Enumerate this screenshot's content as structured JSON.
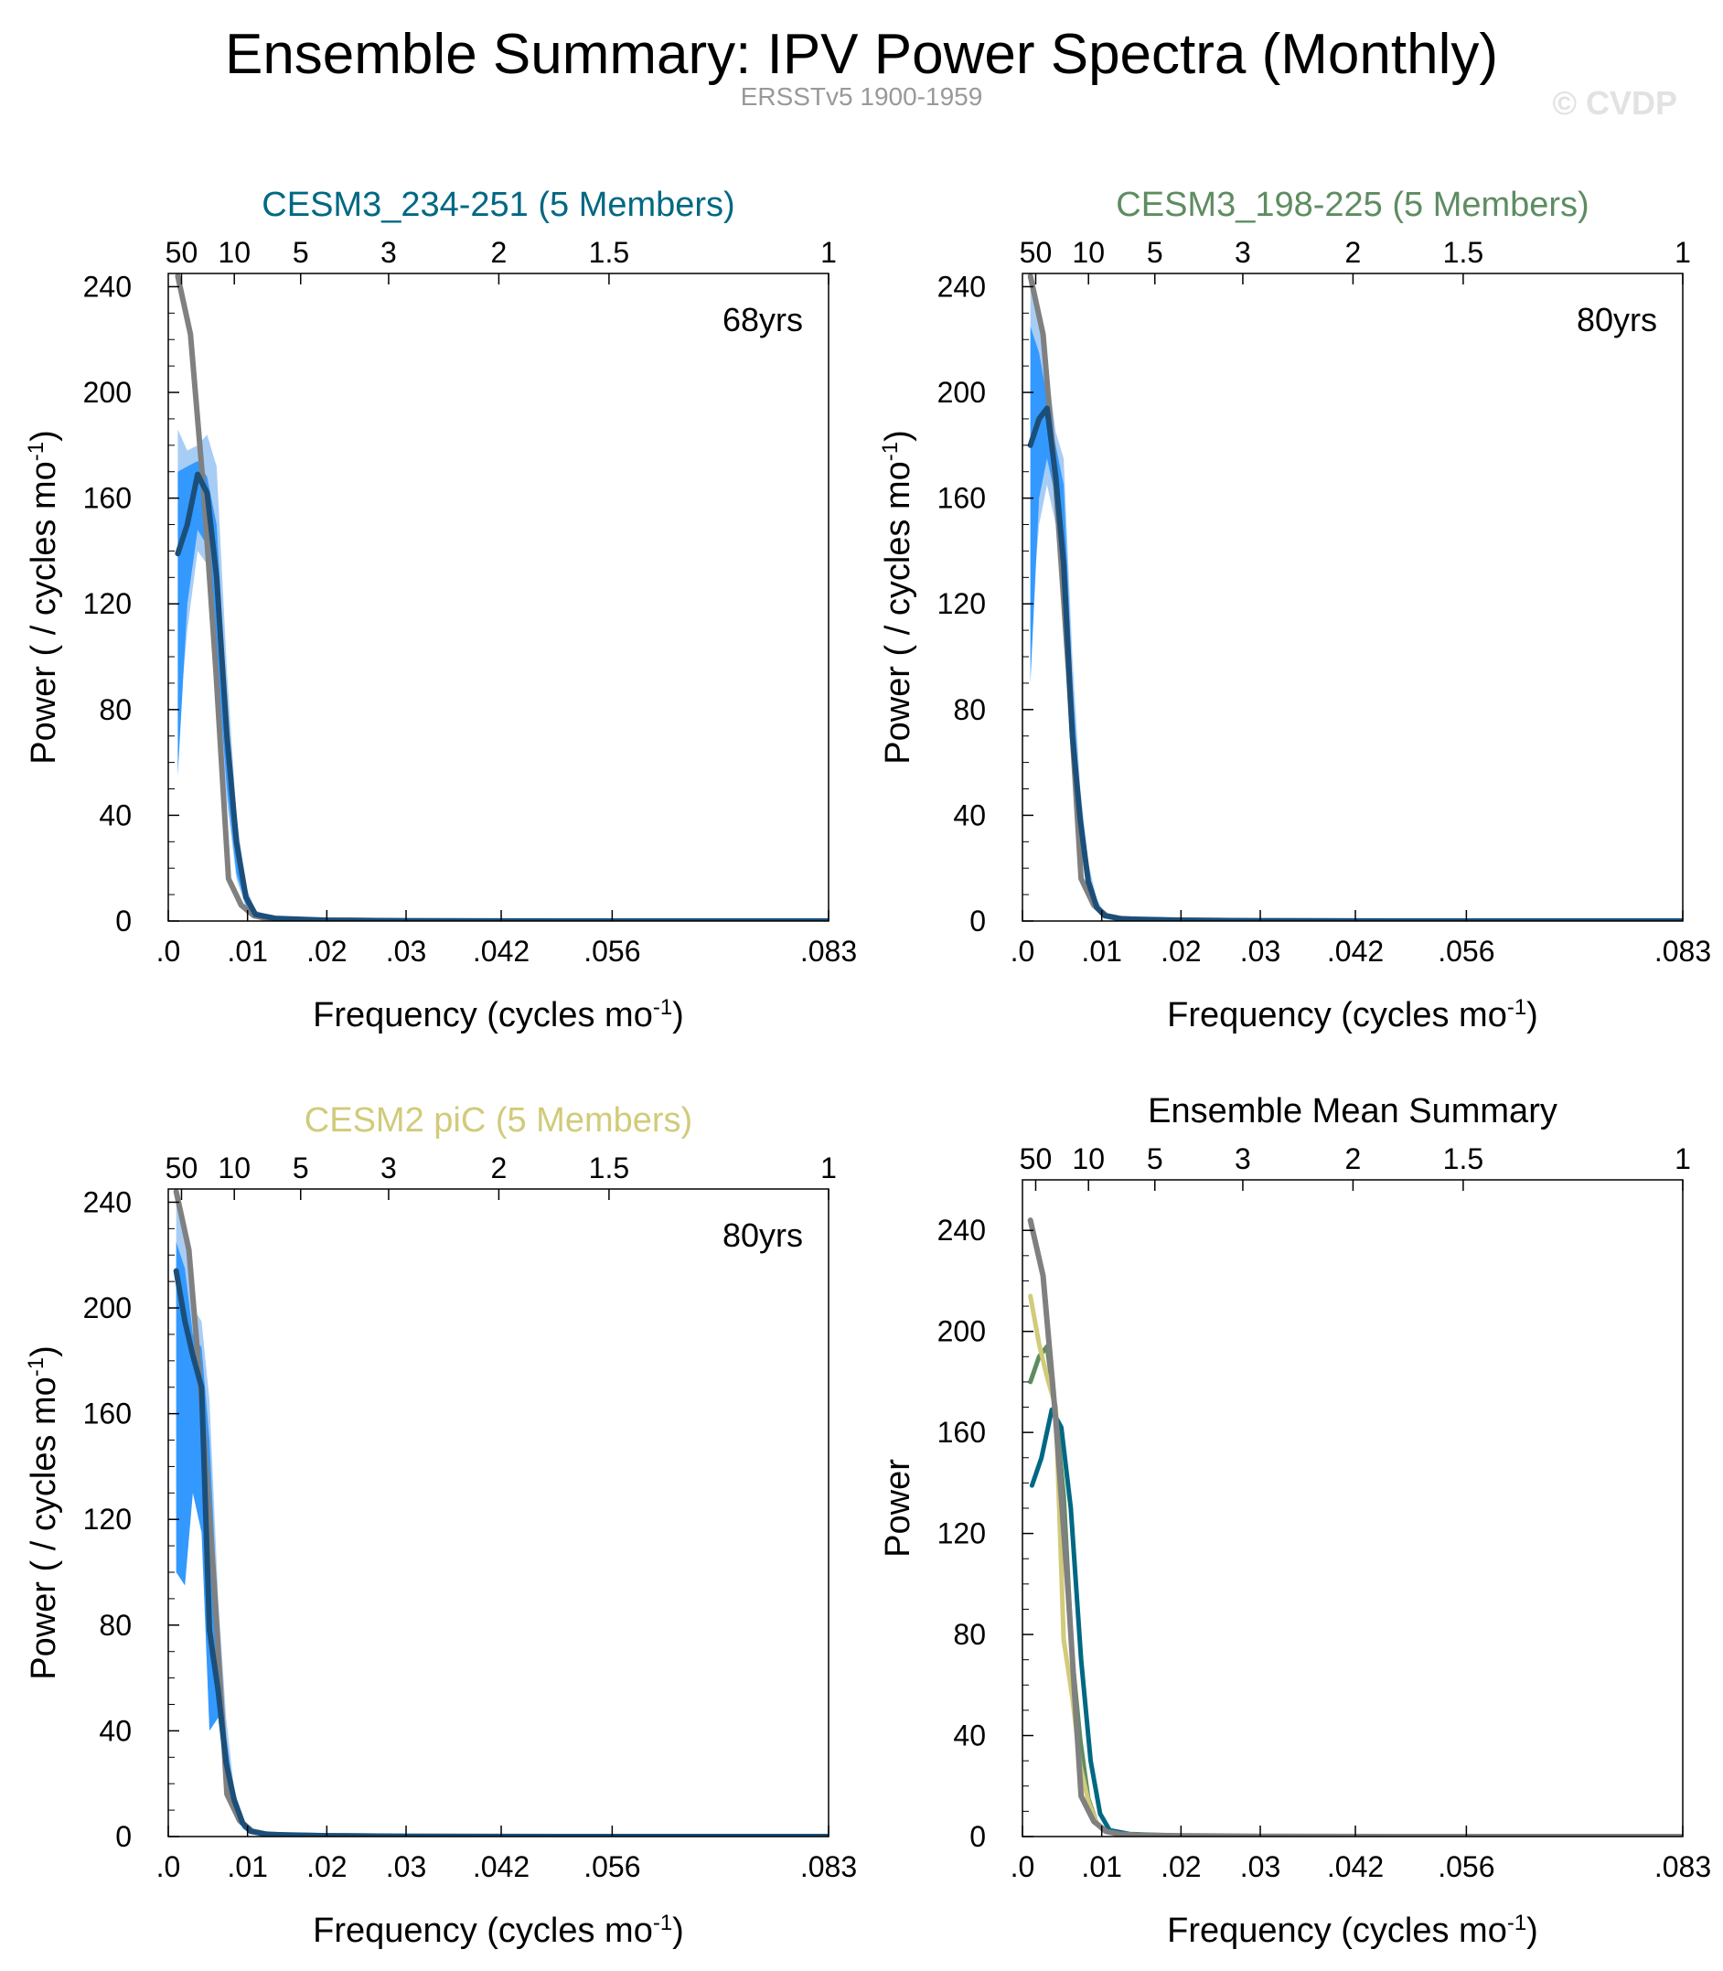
{
  "header": {
    "title": "Ensemble Summary: IPV Power Spectra (Monthly)",
    "subtitle": "ERSSTv5 1900-1959",
    "watermark": "© CVDP"
  },
  "colors": {
    "obs": "#808080",
    "mean_line": "#1b4f7a",
    "band_outer": "#a8cdf5",
    "band_inner": "#3399ff",
    "model1": "#006883",
    "model2": "#5e8c61",
    "model3": "#d1cb7a",
    "frame": "#000000"
  },
  "chart_data": [
    {
      "type": "line",
      "title": "CESM3_234-251 (5 Members)",
      "title_color": "#006883",
      "annotation": "68yrs",
      "xlabel": "Frequency (cycles mo",
      "xlabel_sup": "-1",
      "xlabel_tail": ")",
      "ylabel": "Power ( / cycles mo",
      "ylabel_sup": "-1",
      "ylabel_tail": ")",
      "xlim": [
        0,
        0.0833
      ],
      "ylim": [
        0,
        245
      ],
      "x_ticks": [
        {
          "v": 0,
          "label": ".0"
        },
        {
          "v": 0.01,
          "label": ".01"
        },
        {
          "v": 0.02,
          "label": ".02"
        },
        {
          "v": 0.03,
          "label": ".03"
        },
        {
          "v": 0.042,
          "label": ".042"
        },
        {
          "v": 0.056,
          "label": ".056"
        },
        {
          "v": 0.0833,
          "label": ".083"
        }
      ],
      "top_ticks": [
        {
          "v": 0.00167,
          "label": "50"
        },
        {
          "v": 0.00833,
          "label": "10"
        },
        {
          "v": 0.0167,
          "label": "5"
        },
        {
          "v": 0.0278,
          "label": "3"
        },
        {
          "v": 0.0417,
          "label": "2"
        },
        {
          "v": 0.0556,
          "label": "1.5"
        },
        {
          "v": 0.0833,
          "label": "1"
        }
      ],
      "y_ticks": [
        0,
        40,
        80,
        120,
        160,
        200,
        240
      ],
      "series": [
        {
          "role": "band_outer",
          "x": [
            0.0012,
            0.0024,
            0.0037,
            0.0049,
            0.0061,
            0.0074,
            0.0086,
            0.0098,
            0.011,
            0.0135,
            0.02,
            0.03,
            0.05,
            0.0833
          ],
          "low": [
            70,
            110,
            140,
            135,
            95,
            45,
            16,
            5,
            1,
            0.3,
            0,
            0,
            0,
            0
          ],
          "high": [
            186,
            178,
            180,
            184,
            172,
            95,
            40,
            13,
            4,
            1.2,
            0.4,
            0.1,
            0,
            0
          ]
        },
        {
          "role": "band_inner",
          "x": [
            0.0012,
            0.0024,
            0.0037,
            0.0049,
            0.0061,
            0.0074,
            0.0086,
            0.0098,
            0.011,
            0.0135,
            0.02,
            0.03,
            0.05,
            0.0833
          ],
          "low": [
            55,
            120,
            148,
            142,
            100,
            50,
            18,
            6,
            1.5,
            0.4,
            0,
            0,
            0,
            0
          ],
          "high": [
            170,
            172,
            174,
            168,
            150,
            82,
            35,
            11,
            3,
            1,
            0.3,
            0.1,
            0,
            0
          ]
        },
        {
          "role": "obs",
          "x": [
            0.0012,
            0.0028,
            0.0044,
            0.006,
            0.0076,
            0.0092,
            0.0108,
            0.0124,
            0.015,
            0.02,
            0.03,
            0.05,
            0.0833
          ],
          "y": [
            244,
            222,
            165,
            95,
            16,
            6,
            2,
            1,
            0.5,
            0.3,
            0.1,
            0,
            0
          ]
        },
        {
          "role": "mean",
          "x": [
            0.0012,
            0.0024,
            0.0037,
            0.0049,
            0.0061,
            0.0074,
            0.0086,
            0.0098,
            0.011,
            0.0135,
            0.02,
            0.03,
            0.05,
            0.0833
          ],
          "y": [
            139,
            150,
            169,
            162,
            130,
            70,
            30,
            9,
            2.5,
            1,
            0.3,
            0.1,
            0,
            0
          ]
        }
      ]
    },
    {
      "type": "line",
      "title": "CESM3_198-225 (5 Members)",
      "title_color": "#5e8c61",
      "annotation": "80yrs",
      "xlabel": "Frequency (cycles mo",
      "xlabel_sup": "-1",
      "xlabel_tail": ")",
      "ylabel": "Power ( / cycles mo",
      "ylabel_sup": "-1",
      "ylabel_tail": ")",
      "xlim": [
        0,
        0.0833
      ],
      "ylim": [
        0,
        245
      ],
      "x_ticks": [
        {
          "v": 0,
          "label": ".0"
        },
        {
          "v": 0.01,
          "label": ".01"
        },
        {
          "v": 0.02,
          "label": ".02"
        },
        {
          "v": 0.03,
          "label": ".03"
        },
        {
          "v": 0.042,
          "label": ".042"
        },
        {
          "v": 0.056,
          "label": ".056"
        },
        {
          "v": 0.0833,
          "label": ".083"
        }
      ],
      "top_ticks": [
        {
          "v": 0.00167,
          "label": "50"
        },
        {
          "v": 0.00833,
          "label": "10"
        },
        {
          "v": 0.0167,
          "label": "5"
        },
        {
          "v": 0.0278,
          "label": "3"
        },
        {
          "v": 0.0417,
          "label": "2"
        },
        {
          "v": 0.0556,
          "label": "1.5"
        },
        {
          "v": 0.0833,
          "label": "1"
        }
      ],
      "y_ticks": [
        0,
        40,
        80,
        120,
        160,
        200,
        240
      ],
      "series": [
        {
          "role": "band_outer",
          "x": [
            0.001,
            0.0021,
            0.0031,
            0.0042,
            0.0052,
            0.0063,
            0.0073,
            0.0083,
            0.0094,
            0.0104,
            0.0125,
            0.02,
            0.03,
            0.05,
            0.0833
          ],
          "low": [
            110,
            150,
            165,
            150,
            120,
            55,
            30,
            10,
            4,
            1,
            0.3,
            0,
            0,
            0,
            0
          ],
          "high": [
            244,
            225,
            210,
            185,
            175,
            100,
            50,
            22,
            8,
            3,
            1.2,
            0.4,
            0.1,
            0,
            0
          ]
        },
        {
          "role": "band_inner",
          "x": [
            0.001,
            0.0021,
            0.0031,
            0.0042,
            0.0052,
            0.0063,
            0.0073,
            0.0083,
            0.0094,
            0.0104,
            0.0125,
            0.02,
            0.03,
            0.05,
            0.0833
          ],
          "low": [
            90,
            160,
            175,
            160,
            130,
            60,
            35,
            12,
            5,
            1.2,
            0.4,
            0,
            0,
            0,
            0
          ],
          "high": [
            225,
            215,
            198,
            180,
            165,
            90,
            45,
            18,
            7,
            2.5,
            1,
            0.3,
            0.1,
            0,
            0
          ]
        },
        {
          "role": "obs",
          "x": [
            0.001,
            0.0026,
            0.0042,
            0.0058,
            0.0074,
            0.009,
            0.0106,
            0.0122,
            0.015,
            0.02,
            0.03,
            0.05,
            0.0833
          ],
          "y": [
            244,
            222,
            165,
            95,
            16,
            6,
            2,
            1,
            0.5,
            0.3,
            0.1,
            0,
            0
          ]
        },
        {
          "role": "mean",
          "x": [
            0.001,
            0.0021,
            0.0031,
            0.0042,
            0.0052,
            0.0063,
            0.0073,
            0.0083,
            0.0094,
            0.0104,
            0.0125,
            0.02,
            0.03,
            0.05,
            0.0833
          ],
          "y": [
            180,
            190,
            194,
            168,
            135,
            70,
            38,
            15,
            5,
            2,
            0.8,
            0.3,
            0.1,
            0,
            0
          ]
        }
      ]
    },
    {
      "type": "line",
      "title": "CESM2 piC (5 Members)",
      "title_color": "#d1cb7a",
      "annotation": "80yrs",
      "xlabel": "Frequency (cycles mo",
      "xlabel_sup": "-1",
      "xlabel_tail": ")",
      "ylabel": "Power ( / cycles mo",
      "ylabel_sup": "-1",
      "ylabel_tail": ")",
      "xlim": [
        0,
        0.0833
      ],
      "ylim": [
        0,
        245
      ],
      "x_ticks": [
        {
          "v": 0,
          "label": ".0"
        },
        {
          "v": 0.01,
          "label": ".01"
        },
        {
          "v": 0.02,
          "label": ".02"
        },
        {
          "v": 0.03,
          "label": ".03"
        },
        {
          "v": 0.042,
          "label": ".042"
        },
        {
          "v": 0.056,
          "label": ".056"
        },
        {
          "v": 0.0833,
          "label": ".083"
        }
      ],
      "top_ticks": [
        {
          "v": 0.00167,
          "label": "50"
        },
        {
          "v": 0.00833,
          "label": "10"
        },
        {
          "v": 0.0167,
          "label": "5"
        },
        {
          "v": 0.0278,
          "label": "3"
        },
        {
          "v": 0.0417,
          "label": "2"
        },
        {
          "v": 0.0556,
          "label": "1.5"
        },
        {
          "v": 0.0833,
          "label": "1"
        }
      ],
      "y_ticks": [
        0,
        40,
        80,
        120,
        160,
        200,
        240
      ],
      "series": [
        {
          "role": "band_outer",
          "x": [
            0.001,
            0.0021,
            0.0031,
            0.0042,
            0.0052,
            0.0063,
            0.0073,
            0.0083,
            0.0094,
            0.0104,
            0.0125,
            0.02,
            0.03,
            0.05,
            0.0833
          ],
          "low": [
            105,
            100,
            140,
            120,
            40,
            50,
            20,
            12,
            4,
            1,
            0.3,
            0,
            0,
            0,
            0
          ],
          "high": [
            244,
            230,
            200,
            195,
            165,
            90,
            45,
            18,
            7,
            3,
            1.2,
            0.4,
            0.1,
            0,
            0
          ]
        },
        {
          "role": "band_inner",
          "x": [
            0.001,
            0.0021,
            0.0031,
            0.0042,
            0.0052,
            0.0063,
            0.0073,
            0.0083,
            0.0094,
            0.0104,
            0.0125,
            0.02,
            0.03,
            0.05,
            0.0833
          ],
          "low": [
            100,
            95,
            130,
            115,
            40,
            45,
            18,
            10,
            3,
            1,
            0.3,
            0,
            0,
            0,
            0
          ],
          "high": [
            225,
            215,
            190,
            185,
            150,
            80,
            38,
            15,
            6,
            2.5,
            1,
            0.3,
            0.1,
            0,
            0
          ]
        },
        {
          "role": "obs",
          "x": [
            0.001,
            0.0026,
            0.0042,
            0.0058,
            0.0074,
            0.009,
            0.0106,
            0.0122,
            0.015,
            0.02,
            0.03,
            0.05,
            0.0833
          ],
          "y": [
            244,
            222,
            165,
            95,
            16,
            6,
            2,
            1,
            0.5,
            0.3,
            0.1,
            0,
            0
          ]
        },
        {
          "role": "mean",
          "x": [
            0.001,
            0.0021,
            0.0031,
            0.0042,
            0.0052,
            0.0063,
            0.0073,
            0.0083,
            0.0094,
            0.0104,
            0.0125,
            0.02,
            0.03,
            0.05,
            0.0833
          ],
          "y": [
            214,
            195,
            182,
            170,
            78,
            55,
            28,
            14,
            5,
            2,
            0.8,
            0.3,
            0.1,
            0,
            0
          ]
        }
      ]
    },
    {
      "type": "line",
      "title": "Ensemble Mean Summary",
      "title_color": "#000000",
      "annotation": "",
      "xlabel": "Frequency (cycles mo",
      "xlabel_sup": "-1",
      "xlabel_tail": ")",
      "ylabel": "Power",
      "ylabel_sup": "",
      "ylabel_tail": "",
      "xlim": [
        0,
        0.0833
      ],
      "ylim": [
        0,
        260
      ],
      "x_ticks": [
        {
          "v": 0,
          "label": ".0"
        },
        {
          "v": 0.01,
          "label": ".01"
        },
        {
          "v": 0.02,
          "label": ".02"
        },
        {
          "v": 0.03,
          "label": ".03"
        },
        {
          "v": 0.042,
          "label": ".042"
        },
        {
          "v": 0.056,
          "label": ".056"
        },
        {
          "v": 0.0833,
          "label": ".083"
        }
      ],
      "top_ticks": [
        {
          "v": 0.00167,
          "label": "50"
        },
        {
          "v": 0.00833,
          "label": "10"
        },
        {
          "v": 0.0167,
          "label": "5"
        },
        {
          "v": 0.0278,
          "label": "3"
        },
        {
          "v": 0.0417,
          "label": "2"
        },
        {
          "v": 0.0556,
          "label": "1.5"
        },
        {
          "v": 0.0833,
          "label": "1"
        }
      ],
      "y_ticks": [
        0,
        40,
        80,
        120,
        160,
        200,
        240
      ],
      "series": [
        {
          "role": "model1",
          "x": [
            0.0012,
            0.0024,
            0.0037,
            0.0049,
            0.0061,
            0.0074,
            0.0086,
            0.0098,
            0.011,
            0.0135,
            0.02,
            0.03,
            0.05,
            0.0833
          ],
          "y": [
            139,
            150,
            169,
            162,
            130,
            70,
            30,
            9,
            2.5,
            1,
            0.3,
            0.1,
            0,
            0
          ]
        },
        {
          "role": "model2",
          "x": [
            0.001,
            0.0021,
            0.0031,
            0.0042,
            0.0052,
            0.0063,
            0.0073,
            0.0083,
            0.0094,
            0.0104,
            0.0125,
            0.02,
            0.03,
            0.05,
            0.0833
          ],
          "y": [
            180,
            190,
            194,
            168,
            135,
            70,
            38,
            15,
            5,
            2,
            0.8,
            0.3,
            0.1,
            0,
            0
          ]
        },
        {
          "role": "model3",
          "x": [
            0.001,
            0.0021,
            0.0031,
            0.0042,
            0.0052,
            0.0063,
            0.0073,
            0.0083,
            0.0094,
            0.0104,
            0.0125,
            0.02,
            0.03,
            0.05,
            0.0833
          ],
          "y": [
            214,
            195,
            182,
            170,
            78,
            55,
            28,
            14,
            5,
            2,
            0.8,
            0.3,
            0.1,
            0,
            0
          ]
        },
        {
          "role": "obs",
          "x": [
            0.001,
            0.0026,
            0.0042,
            0.0058,
            0.0074,
            0.009,
            0.0106,
            0.0122,
            0.015,
            0.02,
            0.03,
            0.05,
            0.0833
          ],
          "y": [
            244,
            222,
            165,
            95,
            16,
            6,
            2,
            1,
            0.5,
            0.3,
            0.1,
            0,
            0
          ]
        }
      ]
    }
  ]
}
